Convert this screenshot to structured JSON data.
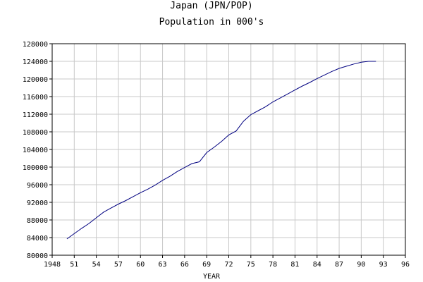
{
  "chart_data": {
    "type": "line",
    "title": "Japan (JPN/POP)",
    "subtitle": "Population in 000's",
    "xlabel": "YEAR",
    "ylabel": "",
    "xlim": [
      1948,
      1996
    ],
    "ylim": [
      80000,
      128000
    ],
    "grid": true,
    "line_color": "#000080",
    "x_ticks": [
      {
        "value": 1948,
        "label": "1948"
      },
      {
        "value": 1951,
        "label": "51"
      },
      {
        "value": 1954,
        "label": "54"
      },
      {
        "value": 1957,
        "label": "57"
      },
      {
        "value": 1960,
        "label": "60"
      },
      {
        "value": 1963,
        "label": "63"
      },
      {
        "value": 1966,
        "label": "66"
      },
      {
        "value": 1969,
        "label": "69"
      },
      {
        "value": 1972,
        "label": "72"
      },
      {
        "value": 1975,
        "label": "75"
      },
      {
        "value": 1978,
        "label": "78"
      },
      {
        "value": 1981,
        "label": "81"
      },
      {
        "value": 1984,
        "label": "84"
      },
      {
        "value": 1987,
        "label": "87"
      },
      {
        "value": 1990,
        "label": "90"
      },
      {
        "value": 1993,
        "label": "93"
      },
      {
        "value": 1996,
        "label": "96"
      }
    ],
    "y_ticks": [
      80000,
      84000,
      88000,
      92000,
      96000,
      100000,
      104000,
      108000,
      112000,
      116000,
      120000,
      124000,
      128000
    ],
    "series": [
      {
        "x": [
          1950,
          1951,
          1952,
          1953,
          1954,
          1955,
          1956,
          1957,
          1958,
          1959,
          1960,
          1961,
          1962,
          1963,
          1964,
          1965,
          1966,
          1967,
          1968,
          1969,
          1970,
          1971,
          1972,
          1973,
          1974,
          1975,
          1976,
          1977,
          1978,
          1979,
          1980,
          1981,
          1982,
          1983,
          1984,
          1985,
          1986,
          1987,
          1988,
          1989,
          1990,
          1991,
          1992
        ],
        "y": [
          83700,
          84900,
          86100,
          87200,
          88500,
          89800,
          90700,
          91600,
          92400,
          93300,
          94200,
          95000,
          95900,
          97000,
          97900,
          99000,
          99900,
          100800,
          101200,
          103300,
          104500,
          105800,
          107300,
          108200,
          110400,
          111900,
          112800,
          113700,
          114800,
          115700,
          116600,
          117500,
          118400,
          119200,
          120100,
          120900,
          121700,
          122400,
          122900,
          123400,
          123800,
          124000,
          124000
        ]
      }
    ]
  }
}
